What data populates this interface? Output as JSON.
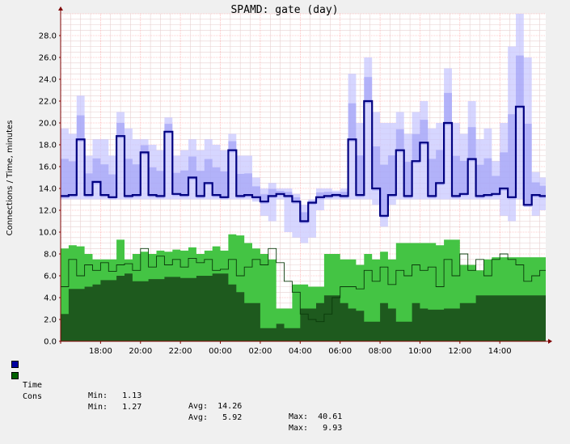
{
  "chart_data": {
    "type": "area",
    "title": "SPAMD: gate (day)",
    "ylabel": "Connections / Time, minutes",
    "ylim": [
      0,
      30
    ],
    "yticks": [
      "0.0",
      "2.0",
      "4.0",
      "6.0",
      "8.0",
      "10.0",
      "12.0",
      "14.0",
      "16.0",
      "18.0",
      "20.0",
      "22.0",
      "24.0",
      "26.0",
      "28.0"
    ],
    "xticks": [
      "18:00",
      "20:00",
      "22:00",
      "00:00",
      "02:00",
      "04:00",
      "06:00",
      "08:00",
      "10:00",
      "12:00",
      "14:00"
    ],
    "xhours": [
      2,
      4,
      6,
      8,
      10,
      12,
      14,
      16,
      18,
      20,
      22
    ],
    "xrange_hours": [
      0,
      24.3
    ],
    "grid": true,
    "colors": {
      "time_line": "#000080",
      "time_band": "#c8c8ff",
      "time_band_inner": "#9a9af5",
      "cons_fill": "#44c444",
      "cons_fill_dark": "#1e5a1e",
      "grid_minor": "#e8d0d0",
      "grid_major": "#ff9999",
      "axis": "#7f0000"
    },
    "series": [
      {
        "name": "Time",
        "legend_color": "#0000a0",
        "x": [
          0,
          0.4,
          0.8,
          1.2,
          1.6,
          2.0,
          2.4,
          2.8,
          3.2,
          3.6,
          4.0,
          4.4,
          4.8,
          5.2,
          5.6,
          6.0,
          6.4,
          6.8,
          7.2,
          7.6,
          8.0,
          8.4,
          8.8,
          9.2,
          9.6,
          10.0,
          10.4,
          10.8,
          11.2,
          11.6,
          12.0,
          12.4,
          12.8,
          13.2,
          13.6,
          14.0,
          14.4,
          14.8,
          15.2,
          15.6,
          16.0,
          16.4,
          16.8,
          17.2,
          17.6,
          18.0,
          18.4,
          18.8,
          19.2,
          19.6,
          20.0,
          20.4,
          20.8,
          21.2,
          21.6,
          22.0,
          22.4,
          22.8,
          23.2,
          23.6,
          24.0
        ],
        "values": [
          13.3,
          13.4,
          18.5,
          13.4,
          14.6,
          13.4,
          13.2,
          18.8,
          13.3,
          13.4,
          17.3,
          13.4,
          13.3,
          19.2,
          13.5,
          13.4,
          15.0,
          13.3,
          14.5,
          13.4,
          13.2,
          17.5,
          13.3,
          13.4,
          13.2,
          12.8,
          13.3,
          13.5,
          13.3,
          12.8,
          11.0,
          12.7,
          13.2,
          13.3,
          13.4,
          13.3,
          18.5,
          13.4,
          22.0,
          14.0,
          11.5,
          13.4,
          17.5,
          13.3,
          16.5,
          18.2,
          13.3,
          14.5,
          20.0,
          13.3,
          13.5,
          16.7,
          13.3,
          13.4,
          13.5,
          14.0,
          13.2,
          21.5,
          12.5,
          13.4,
          13.3
        ],
        "band_upper": [
          19.5,
          19.0,
          22.5,
          17.0,
          18.5,
          18.5,
          17.0,
          21.0,
          19.5,
          18.5,
          18.5,
          18.0,
          17.5,
          20.5,
          17.0,
          17.5,
          18.5,
          17.5,
          18.5,
          18.0,
          17.5,
          19.0,
          17.0,
          17.0,
          15.0,
          14.0,
          14.5,
          14.0,
          14.0,
          13.5,
          12.5,
          13.0,
          14.0,
          14.0,
          13.8,
          14.0,
          24.5,
          20.0,
          26.0,
          21.0,
          20.0,
          20.0,
          21.0,
          19.0,
          21.0,
          22.0,
          19.5,
          20.0,
          25.0,
          20.0,
          19.0,
          22.0,
          18.5,
          19.5,
          16.5,
          20.0,
          27.0,
          30.0,
          26.0,
          15.5,
          15.0
        ],
        "band_lower": [
          13.0,
          13.0,
          13.0,
          13.0,
          13.0,
          13.0,
          13.0,
          13.0,
          13.0,
          13.0,
          13.0,
          13.0,
          13.0,
          13.0,
          13.0,
          13.0,
          13.0,
          13.0,
          13.0,
          13.0,
          13.0,
          13.0,
          13.0,
          13.0,
          12.8,
          11.5,
          11.0,
          13.0,
          10.0,
          9.5,
          9.0,
          9.5,
          12.0,
          13.0,
          13.0,
          13.0,
          13.0,
          13.0,
          13.0,
          12.5,
          10.5,
          12.5,
          13.0,
          13.0,
          13.0,
          13.0,
          13.0,
          13.0,
          13.0,
          13.0,
          13.0,
          13.0,
          13.0,
          13.0,
          13.0,
          11.5,
          11.0,
          13.0,
          12.5,
          11.5,
          12.0
        ],
        "stats": {
          "min_label": "Min:",
          "min": "1.13",
          "avg_label": "Avg:",
          "avg": "14.26",
          "max_label": "Max:",
          "max": "40.61"
        }
      },
      {
        "name": "Cons",
        "legend_color": "#006000",
        "x": [
          0,
          0.4,
          0.8,
          1.2,
          1.6,
          2.0,
          2.4,
          2.8,
          3.2,
          3.6,
          4.0,
          4.4,
          4.8,
          5.2,
          5.6,
          6.0,
          6.4,
          6.8,
          7.2,
          7.6,
          8.0,
          8.4,
          8.8,
          9.2,
          9.6,
          10.0,
          10.4,
          10.8,
          11.2,
          11.6,
          12.0,
          12.4,
          12.8,
          13.2,
          13.6,
          14.0,
          14.4,
          14.8,
          15.2,
          15.6,
          16.0,
          16.4,
          16.8,
          17.2,
          17.6,
          18.0,
          18.4,
          18.8,
          19.2,
          19.6,
          20.0,
          20.4,
          20.8,
          21.2,
          21.6,
          22.0,
          22.4,
          22.8,
          23.2,
          23.6,
          24.0
        ],
        "values": [
          5.0,
          7.5,
          6.0,
          7.0,
          6.5,
          7.2,
          6.4,
          7.0,
          7.1,
          6.5,
          8.5,
          6.8,
          7.8,
          7.0,
          7.5,
          6.8,
          7.6,
          7.2,
          7.5,
          6.5,
          6.6,
          7.5,
          6.0,
          6.8,
          7.5,
          7.0,
          8.5,
          7.2,
          5.5,
          4.5,
          2.5,
          2.0,
          1.8,
          2.5,
          4.0,
          5.0,
          5.0,
          4.8,
          6.5,
          5.5,
          6.8,
          5.2,
          6.5,
          6.0,
          7.0,
          6.5,
          6.8,
          5.0,
          7.5,
          6.0,
          8.0,
          6.5,
          7.5,
          6.0,
          7.5,
          8.0,
          7.5,
          7.0,
          5.5,
          6.0,
          6.5
        ],
        "upper": [
          8.5,
          8.8,
          8.7,
          8.0,
          7.5,
          7.5,
          7.5,
          9.3,
          7.5,
          8.0,
          8.2,
          8.0,
          8.3,
          8.2,
          8.4,
          8.3,
          8.6,
          8.0,
          8.3,
          8.7,
          8.3,
          9.8,
          9.7,
          9.0,
          8.5,
          8.0,
          7.5,
          3.0,
          3.0,
          5.2,
          5.2,
          5.0,
          5.0,
          8.0,
          8.0,
          7.5,
          7.5,
          7.0,
          8.0,
          7.5,
          8.2,
          7.5,
          9.0,
          9.0,
          9.0,
          9.0,
          9.0,
          8.8,
          9.3,
          9.3,
          7.0,
          7.0,
          6.5,
          7.5,
          7.7,
          7.7,
          7.7,
          7.7,
          7.7,
          7.7,
          7.7
        ],
        "lower": [
          2.5,
          4.8,
          4.8,
          5.0,
          5.2,
          5.6,
          5.6,
          6.0,
          6.2,
          5.5,
          5.5,
          5.7,
          5.7,
          5.9,
          5.9,
          5.8,
          5.8,
          6.0,
          6.0,
          6.2,
          6.2,
          5.2,
          4.5,
          3.5,
          3.5,
          1.2,
          1.2,
          1.6,
          1.2,
          1.2,
          3.0,
          3.0,
          3.5,
          4.2,
          4.2,
          3.5,
          3.0,
          2.8,
          1.8,
          1.8,
          3.5,
          3.0,
          1.8,
          1.8,
          3.5,
          3.0,
          2.9,
          2.9,
          3.0,
          3.0,
          3.5,
          3.5,
          4.2,
          4.2,
          4.2,
          4.2,
          4.2,
          4.2,
          4.2,
          4.2,
          4.2
        ],
        "stats": {
          "min_label": "Min:",
          "min": "1.27",
          "avg_label": "Avg:",
          "avg": "5.92",
          "max_label": "Max:",
          "max": "9.93"
        }
      }
    ]
  }
}
